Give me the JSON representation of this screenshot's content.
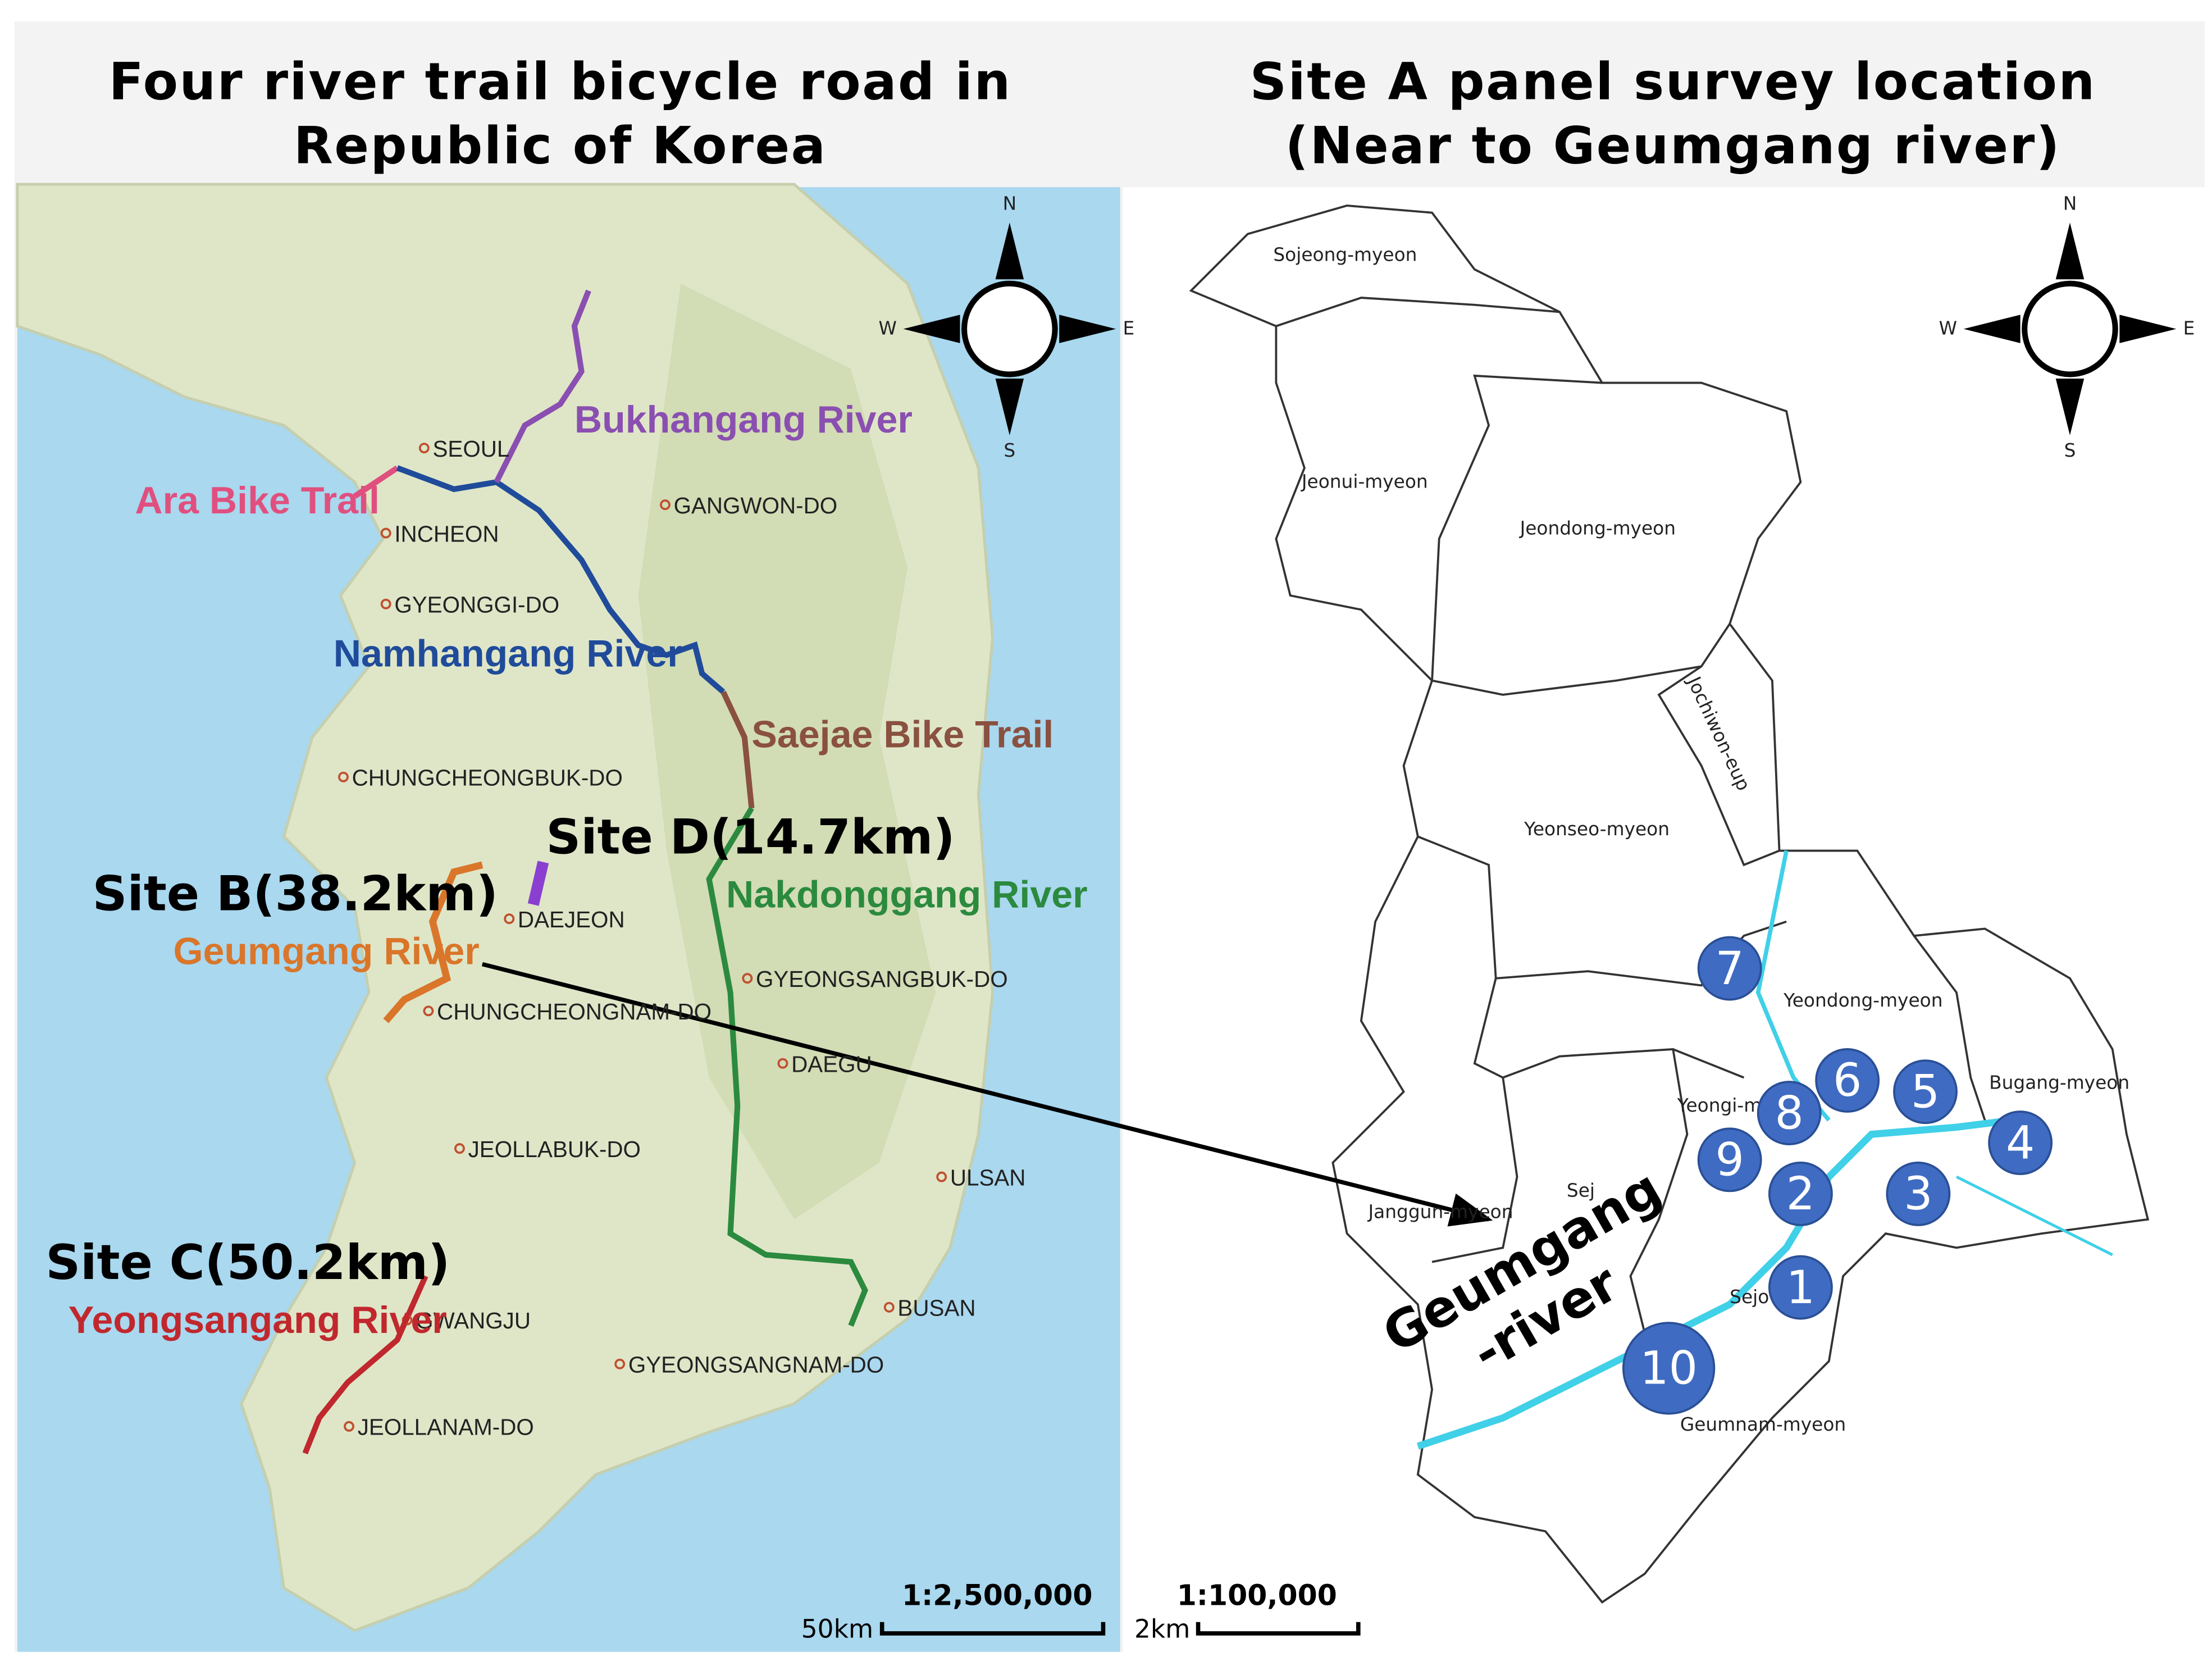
{
  "left_panel": {
    "title_lines": [
      "Four river trail bicycle road in",
      "Republic of Korea"
    ],
    "compass": [
      "N",
      "W",
      "E",
      "S"
    ],
    "place_labels": [
      "SEOUL",
      "INCHEON",
      "GANGWON-DO",
      "GYEONGGI-DO",
      "CHUNGCHEONGBUK-DO",
      "DAEJEON",
      "CHUNGCHEONGNAM-DO",
      "GYEONGSANGBUK-DO",
      "DAEGU",
      "ULSAN",
      "JEOLLABUK-DO",
      "GWANGJU",
      "BUSAN",
      "GYEONGSANGNAM-DO",
      "JEOLLANAM-DO"
    ],
    "trails": [
      "Bukhangang River",
      "Ara Bike Trail",
      "Namhangang River",
      "Saejae Bike Trail",
      "Nakdonggang River",
      "Geumgang River",
      "Yeongsangang River"
    ],
    "sites": [
      "Site B(38.2km)",
      "Site D(14.7km)",
      "Site C(50.2km)"
    ],
    "scale_ratio": "1:2,500,000",
    "scale_length": "50km"
  },
  "right_panel": {
    "title_lines": [
      "Site A panel survey location",
      "(Near to Geumgang river)"
    ],
    "compass": [
      "N",
      "W",
      "E",
      "S"
    ],
    "regions": [
      "Sojeong-myeon",
      "Jeonui-myeon",
      "Jeondong-myeon",
      "Jochiwon-eup",
      "Yeonseo-myeon",
      "Yeondong-myeon",
      "Bugang-myeon",
      "Yeongi-m",
      "Sej",
      "Janggun-myeon",
      "Sejo",
      "Geumnam-myeon"
    ],
    "river_label": [
      "Geumgang",
      "-river"
    ],
    "survey_points": [
      "1",
      "2",
      "3",
      "4",
      "5",
      "6",
      "7",
      "8",
      "9",
      "10"
    ],
    "scale_ratio": "1:100,000",
    "scale_length": "2km"
  }
}
